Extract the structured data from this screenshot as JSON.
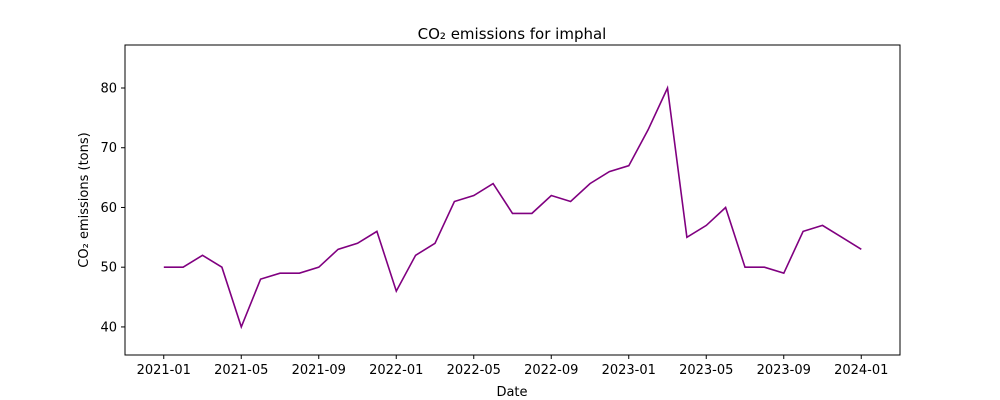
{
  "chart_data": {
    "type": "line",
    "title": "CO₂ emissions for imphal",
    "x_label": "Date",
    "y_label": "CO₂ emissions (tons)",
    "x": [
      "2021-01",
      "2021-02",
      "2021-03",
      "2021-04",
      "2021-05",
      "2021-06",
      "2021-07",
      "2021-08",
      "2021-09",
      "2021-10",
      "2021-11",
      "2021-12",
      "2022-01",
      "2022-02",
      "2022-03",
      "2022-04",
      "2022-05",
      "2022-06",
      "2022-07",
      "2022-08",
      "2022-09",
      "2022-10",
      "2022-11",
      "2022-12",
      "2023-01",
      "2023-02",
      "2023-03",
      "2023-04",
      "2023-05",
      "2023-06",
      "2023-07",
      "2023-08",
      "2023-09",
      "2023-10",
      "2023-11",
      "2023-12",
      "2024-01"
    ],
    "series": [
      {
        "name": "CO₂ emissions",
        "color": "#800080",
        "values": [
          50,
          50,
          52,
          50,
          40,
          48,
          49,
          49,
          50,
          53,
          54,
          56,
          46,
          52,
          54,
          61,
          62,
          64,
          59,
          59,
          62,
          61,
          64,
          66,
          67,
          73,
          80,
          55,
          57,
          60,
          50,
          50,
          49,
          56,
          57,
          55,
          53
        ]
      }
    ],
    "xlim": [
      "2020-11",
      "2024-03"
    ],
    "xticks": [
      "2021-01",
      "2021-05",
      "2021-09",
      "2022-01",
      "2022-05",
      "2022-09",
      "2023-01",
      "2023-05",
      "2023-09",
      "2024-01"
    ],
    "ylim": [
      35.3,
      87.2
    ],
    "yticks": [
      40,
      50,
      60,
      70,
      80
    ],
    "grid": false
  }
}
